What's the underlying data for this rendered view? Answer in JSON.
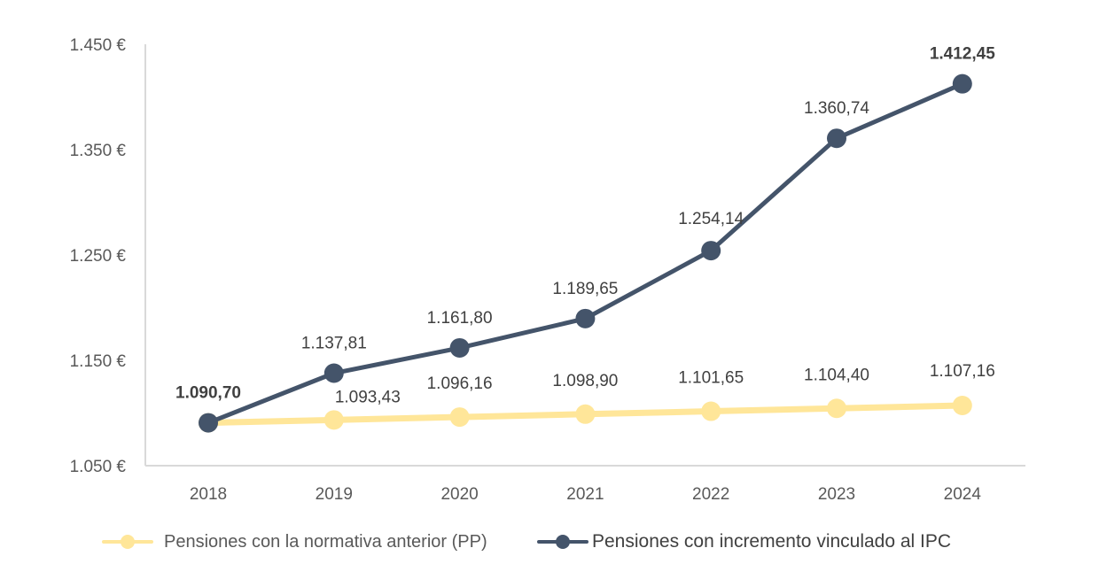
{
  "chart_data": {
    "type": "line",
    "title": "",
    "xlabel": "",
    "ylabel": "",
    "categories": [
      "2018",
      "2019",
      "2020",
      "2021",
      "2022",
      "2023",
      "2024"
    ],
    "y_ticks": [
      "1.050 €",
      "1.150 €",
      "1.250 €",
      "1.350 €",
      "1.450 €"
    ],
    "ylim": [
      1050,
      1450
    ],
    "grid": false,
    "legend_position": "bottom",
    "series": [
      {
        "name": "Pensiones con la normativa anterior (PP)",
        "color": "#FFE699",
        "values": [
          1090.7,
          1093.43,
          1096.16,
          1098.9,
          1101.65,
          1104.4,
          1107.16
        ],
        "labels": [
          "",
          "1.093,43",
          "1.096,16",
          "1.098,90",
          "1.101,65",
          "1.104,40",
          "1.107,16"
        ]
      },
      {
        "name": "Pensiones con incremento vinculado al IPC",
        "color": "#44546A",
        "values": [
          1090.7,
          1137.81,
          1161.8,
          1189.65,
          1254.14,
          1360.74,
          1412.45
        ],
        "labels": [
          "1.090,70",
          "1.137,81",
          "1.161,80",
          "1.189,65",
          "1.254,14",
          "1.360,74",
          "1.412,45"
        ]
      }
    ]
  },
  "legend": {
    "items": [
      {
        "label": "Pensiones con la normativa anterior (PP)",
        "color": "#FFE699"
      },
      {
        "label": "Pensiones con incremento vinculado al IPC",
        "color": "#44546A"
      }
    ]
  }
}
